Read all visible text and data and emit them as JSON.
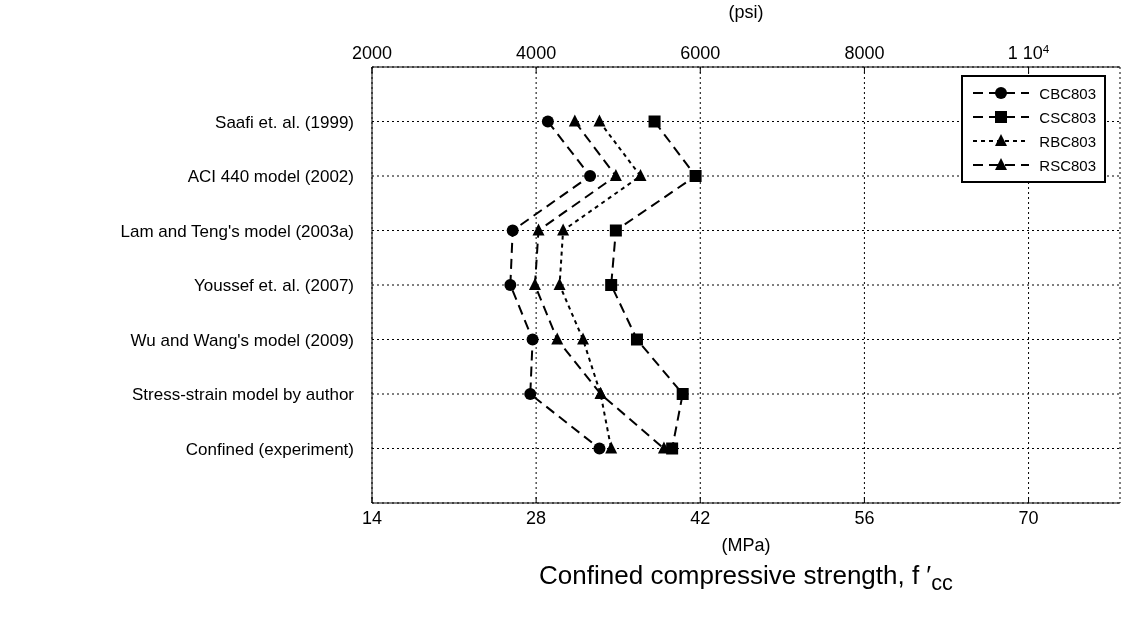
{
  "chart_data": {
    "type": "line",
    "orientation": "horizontal",
    "categories": [
      "Saafi et. al. (1999)",
      "ACI 440 model (2002)",
      "Lam and Teng's model (2003a)",
      "Youssef et. al. (2007)",
      "Wu and Wang's model (2009)",
      "Stress-strain model by author",
      "Confined (experiment)"
    ],
    "series": [
      {
        "name": "CBC803",
        "color": "#000000",
        "marker": "circle",
        "line_style": "dashed",
        "values": [
          29.0,
          32.6,
          26.0,
          25.8,
          27.7,
          27.5,
          33.4
        ]
      },
      {
        "name": "CSC803",
        "color": "#000000",
        "marker": "square",
        "line_style": "dashed",
        "values": [
          38.1,
          41.6,
          34.8,
          34.4,
          36.6,
          40.5,
          39.6
        ]
      },
      {
        "name": "RBC803",
        "color": "#000000",
        "marker": "triangle",
        "line_style": "dotted",
        "values": [
          33.4,
          36.9,
          30.3,
          30.0,
          32.0,
          33.5,
          34.4
        ]
      },
      {
        "name": "RSC803",
        "color": "#000000",
        "marker": "triangle",
        "line_style": "dashed",
        "values": [
          31.3,
          34.8,
          28.2,
          27.9,
          29.8,
          33.5,
          38.9
        ]
      }
    ],
    "xlim": [
      14,
      77.8
    ],
    "xticks": [
      14,
      28,
      42,
      56,
      70
    ],
    "x2lim": [
      2000,
      11114
    ],
    "x2ticks": [
      2000,
      4000,
      6000,
      8000,
      {
        "value": 10000,
        "label": "1 10$^{4}$"
      }
    ],
    "x2label": "(psi)",
    "xlabel": "Confined compressive strength, f ′$_{cc}$",
    "annotations": [
      "(MPa)"
    ],
    "grid": true,
    "legend": "top right"
  }
}
